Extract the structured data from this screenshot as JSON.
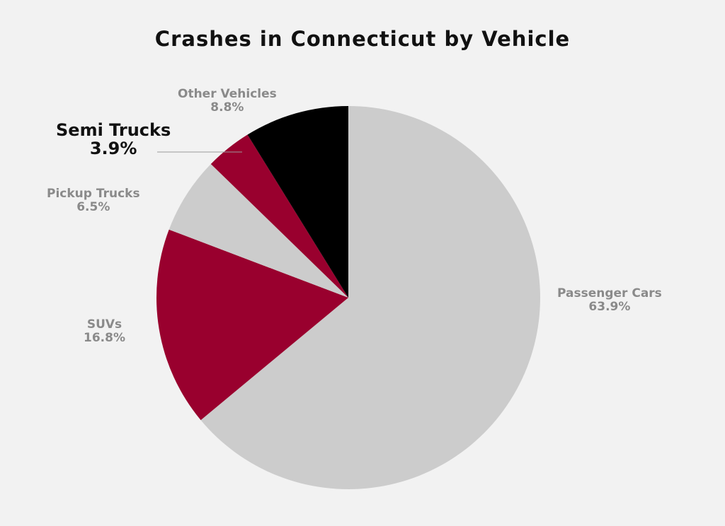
{
  "chart_data": {
    "type": "pie",
    "title": "Crashes in Connecticut by Vehicle",
    "start_angle_deg": 0,
    "direction": "clockwise",
    "slices": [
      {
        "label": "Passenger Cars",
        "value": 63.9,
        "display": "63.9%",
        "color": "#cccccc",
        "emphasis": false
      },
      {
        "label": "SUVs",
        "value": 16.8,
        "display": "16.8%",
        "color": "#99002e",
        "emphasis": false
      },
      {
        "label": "Pickup Trucks",
        "value": 6.5,
        "display": "6.5%",
        "color": "#cccccc",
        "emphasis": false
      },
      {
        "label": "Semi Trucks",
        "value": 3.9,
        "display": "3.9%",
        "color": "#99002e",
        "emphasis": true
      },
      {
        "label": "Other Vehicles",
        "value": 8.8,
        "display": "8.8%",
        "color": "#000000",
        "emphasis": false
      }
    ]
  }
}
